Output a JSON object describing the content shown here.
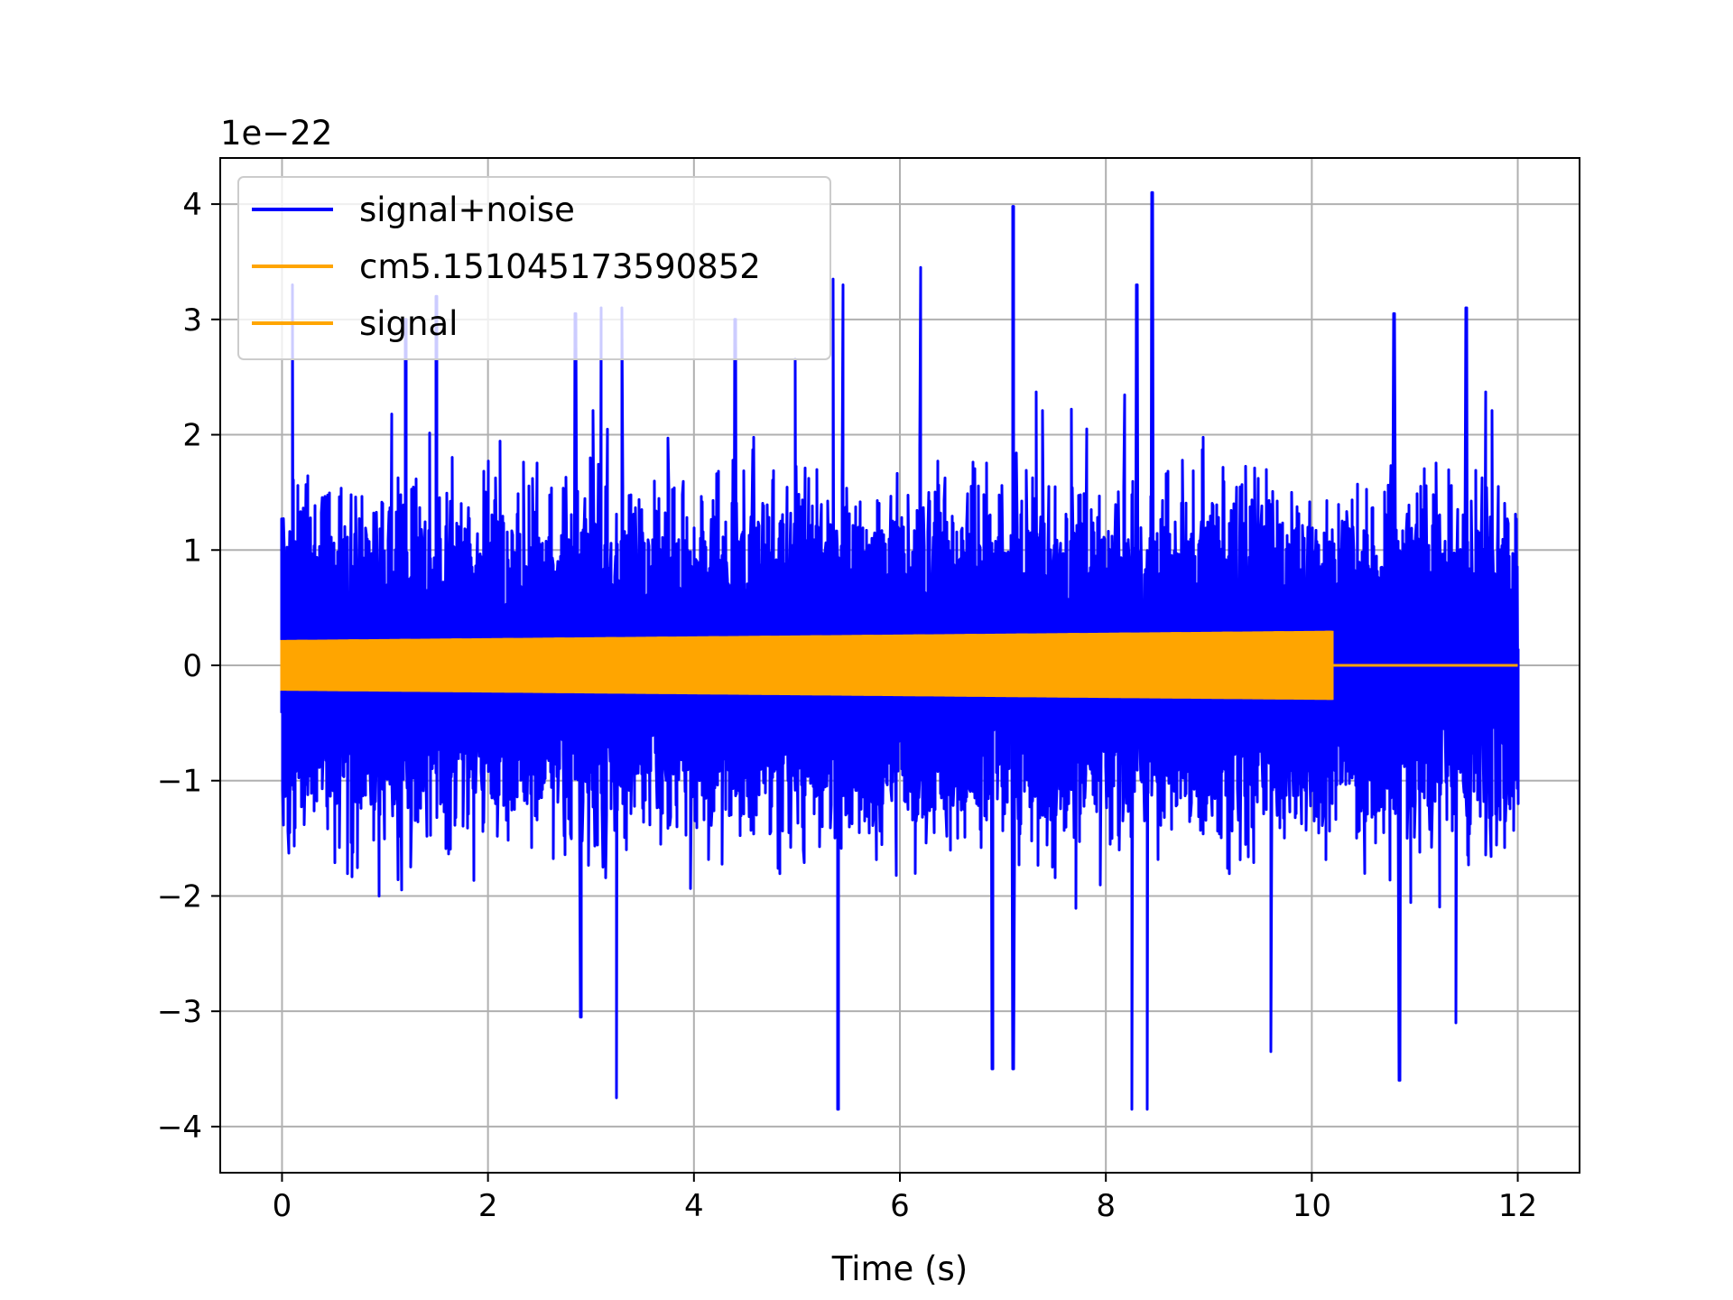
{
  "chart_data": {
    "type": "line",
    "title": "",
    "xlabel": "Time (s)",
    "ylabel": "",
    "y_offset_label": "1e−22",
    "y_scale_factor": 1e-22,
    "xlim": [
      -0.6,
      12.6
    ],
    "ylim": [
      -4.4,
      4.4
    ],
    "x_ticks": [
      0,
      2,
      4,
      6,
      8,
      10,
      12
    ],
    "x_tick_labels": [
      "0",
      "2",
      "4",
      "6",
      "8",
      "10",
      "12"
    ],
    "y_ticks": [
      -4,
      -3,
      -2,
      -1,
      0,
      1,
      2,
      3,
      4
    ],
    "y_tick_labels": [
      "−4",
      "−3",
      "−2",
      "−1",
      "0",
      "1",
      "2",
      "3",
      "4"
    ],
    "grid": true,
    "legend_position": "upper-left",
    "series": [
      {
        "name": "signal+noise",
        "color": "#0000ff",
        "x_range": [
          0,
          12
        ],
        "typical_amplitude": 1.1,
        "approx_max": 4.1,
        "approx_min": -3.85,
        "notable_peaks": [
          {
            "x": 0.1,
            "y": 3.3
          },
          {
            "x": 1.2,
            "y": 3.0
          },
          {
            "x": 1.5,
            "y": 3.2
          },
          {
            "x": 2.85,
            "y": 3.05
          },
          {
            "x": 3.1,
            "y": 3.1
          },
          {
            "x": 3.3,
            "y": 3.1
          },
          {
            "x": 4.4,
            "y": 3.0
          },
          {
            "x": 5.35,
            "y": 3.35
          },
          {
            "x": 5.45,
            "y": 3.3
          },
          {
            "x": 6.2,
            "y": 3.45
          },
          {
            "x": 7.1,
            "y": 3.98
          },
          {
            "x": 8.3,
            "y": 3.3
          },
          {
            "x": 8.45,
            "y": 4.1
          },
          {
            "x": 10.8,
            "y": 3.05
          },
          {
            "x": 11.5,
            "y": 3.1
          }
        ],
        "notable_troughs": [
          {
            "x": 2.9,
            "y": -3.05
          },
          {
            "x": 3.25,
            "y": -3.75
          },
          {
            "x": 5.4,
            "y": -3.85
          },
          {
            "x": 6.9,
            "y": -3.5
          },
          {
            "x": 7.1,
            "y": -3.5
          },
          {
            "x": 8.25,
            "y": -3.85
          },
          {
            "x": 8.4,
            "y": -3.85
          },
          {
            "x": 9.6,
            "y": -3.35
          },
          {
            "x": 10.85,
            "y": -3.6
          },
          {
            "x": 11.4,
            "y": -3.1
          }
        ]
      },
      {
        "name": "cm5.151045173590852",
        "color": "#ffa500",
        "in_legend_only": true
      },
      {
        "name": "signal",
        "color": "#ffa500",
        "x_range": [
          0,
          12
        ],
        "envelope": [
          {
            "x": 0.0,
            "amplitude": 0.22
          },
          {
            "x": 10.2,
            "amplitude": 0.3
          }
        ],
        "end_of_signal_x": 10.2,
        "after_end_value": 0
      }
    ]
  }
}
